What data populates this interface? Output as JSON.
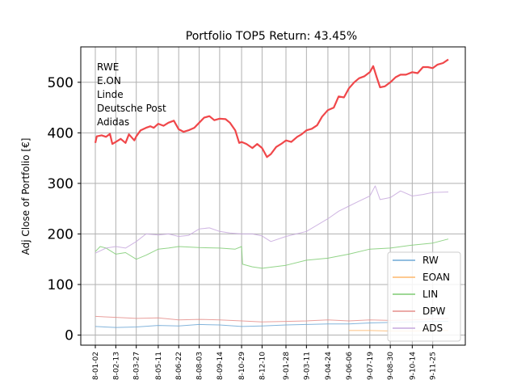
{
  "chart_data": {
    "type": "line",
    "title": "Portfolio TOP5 Return: 43.45%",
    "xlabel": "",
    "ylabel": "Adj Close of Portfolio [€]",
    "ylim": [
      -20,
      570
    ],
    "yticks": [
      0,
      100,
      200,
      300,
      400,
      500
    ],
    "grid": true,
    "legend_position": "lower-right",
    "xticks": [
      "2018-01-02",
      "2018-02-13",
      "2018-03-27",
      "2018-05-11",
      "2018-06-22",
      "2018-08-03",
      "2018-09-14",
      "2018-10-29",
      "2018-12-10",
      "2019-01-28",
      "2019-03-11",
      "2019-04-24",
      "2019-06-06",
      "2019-07-19",
      "2019-08-30",
      "2019-10-14",
      "2019-11-25"
    ],
    "xticks_display": [
      "8-01-02",
      "8-02-13",
      "8-03-27",
      "8-05-11",
      "8-06-22",
      "8-08-03",
      "8-09-14",
      "8-10-29",
      "8-12-10",
      "9-01-28",
      "9-03-11",
      "9-04-24",
      "9-06-06",
      "9-07-19",
      "9-08-30",
      "9-10-14",
      "9-11-25"
    ],
    "annotation_lines": [
      "RWE",
      "E.ON",
      "Linde",
      "Deutsche Post",
      "Adidas"
    ],
    "portfolio": {
      "name": "",
      "color": "#f0474a",
      "points": [
        [
          "2018-01-02",
          380
        ],
        [
          "2018-01-05",
          393
        ],
        [
          "2018-01-15",
          395
        ],
        [
          "2018-01-24",
          392
        ],
        [
          "2018-02-01",
          398
        ],
        [
          "2018-02-06",
          378
        ],
        [
          "2018-02-13",
          382
        ],
        [
          "2018-02-23",
          388
        ],
        [
          "2018-03-05",
          380
        ],
        [
          "2018-03-12",
          397
        ],
        [
          "2018-03-23",
          385
        ],
        [
          "2018-03-27",
          393
        ],
        [
          "2018-04-05",
          405
        ],
        [
          "2018-04-16",
          410
        ],
        [
          "2018-04-25",
          413
        ],
        [
          "2018-05-02",
          410
        ],
        [
          "2018-05-11",
          418
        ],
        [
          "2018-05-22",
          414
        ],
        [
          "2018-06-01",
          420
        ],
        [
          "2018-06-12",
          424
        ],
        [
          "2018-06-22",
          407
        ],
        [
          "2018-07-02",
          402
        ],
        [
          "2018-07-12",
          405
        ],
        [
          "2018-07-24",
          410
        ],
        [
          "2018-08-03",
          420
        ],
        [
          "2018-08-13",
          430
        ],
        [
          "2018-08-24",
          433
        ],
        [
          "2018-09-03",
          425
        ],
        [
          "2018-09-14",
          428
        ],
        [
          "2018-09-26",
          427
        ],
        [
          "2018-10-05",
          420
        ],
        [
          "2018-10-16",
          405
        ],
        [
          "2018-10-24",
          380
        ],
        [
          "2018-10-29",
          382
        ],
        [
          "2018-11-08",
          378
        ],
        [
          "2018-11-20",
          370
        ],
        [
          "2018-11-30",
          378
        ],
        [
          "2018-12-10",
          370
        ],
        [
          "2018-12-20",
          352
        ],
        [
          "2018-12-28",
          358
        ],
        [
          "2019-01-08",
          372
        ],
        [
          "2019-01-18",
          378
        ],
        [
          "2019-01-28",
          385
        ],
        [
          "2019-02-08",
          382
        ],
        [
          "2019-02-20",
          392
        ],
        [
          "2019-03-01",
          397
        ],
        [
          "2019-03-11",
          405
        ],
        [
          "2019-03-22",
          408
        ],
        [
          "2019-04-02",
          415
        ],
        [
          "2019-04-12",
          432
        ],
        [
          "2019-04-24",
          445
        ],
        [
          "2019-05-06",
          450
        ],
        [
          "2019-05-16",
          472
        ],
        [
          "2019-05-27",
          470
        ],
        [
          "2019-06-06",
          488
        ],
        [
          "2019-06-17",
          500
        ],
        [
          "2019-06-27",
          508
        ],
        [
          "2019-07-08",
          512
        ],
        [
          "2019-07-19",
          520
        ],
        [
          "2019-07-26",
          532
        ],
        [
          "2019-08-02",
          510
        ],
        [
          "2019-08-09",
          490
        ],
        [
          "2019-08-19",
          492
        ],
        [
          "2019-08-30",
          500
        ],
        [
          "2019-09-10",
          510
        ],
        [
          "2019-09-20",
          515
        ],
        [
          "2019-10-01",
          515
        ],
        [
          "2019-10-14",
          520
        ],
        [
          "2019-10-25",
          518
        ],
        [
          "2019-11-05",
          530
        ],
        [
          "2019-11-15",
          530
        ],
        [
          "2019-11-25",
          528
        ],
        [
          "2019-12-05",
          535
        ],
        [
          "2019-12-16",
          538
        ],
        [
          "2019-12-27",
          545
        ]
      ]
    },
    "series": [
      {
        "name": "RW",
        "color": "#6fa8d6",
        "points": [
          [
            "2018-01-02",
            17
          ],
          [
            "2018-02-13",
            15
          ],
          [
            "2018-03-27",
            16
          ],
          [
            "2018-05-11",
            19
          ],
          [
            "2018-06-22",
            18
          ],
          [
            "2018-08-03",
            21
          ],
          [
            "2018-09-14",
            20
          ],
          [
            "2018-10-29",
            17
          ],
          [
            "2018-12-10",
            18
          ],
          [
            "2019-01-28",
            20
          ],
          [
            "2019-03-11",
            21
          ],
          [
            "2019-04-24",
            22
          ],
          [
            "2019-06-06",
            22
          ],
          [
            "2019-07-19",
            24
          ],
          [
            "2019-08-30",
            25
          ],
          [
            "2019-10-14",
            26
          ],
          [
            "2019-11-25",
            27
          ],
          [
            "2019-12-27",
            27
          ]
        ]
      },
      {
        "name": "EOAN",
        "color": "#fdb76c",
        "points": [
          [
            "2019-06-06",
            9
          ],
          [
            "2019-07-19",
            9
          ],
          [
            "2019-08-30",
            8
          ],
          [
            "2019-10-14",
            8
          ],
          [
            "2019-11-25",
            9
          ],
          [
            "2019-12-27",
            9
          ]
        ]
      },
      {
        "name": "LIN",
        "color": "#7fcc73",
        "points": [
          [
            "2018-01-02",
            165
          ],
          [
            "2018-01-12",
            175
          ],
          [
            "2018-01-24",
            172
          ],
          [
            "2018-02-13",
            160
          ],
          [
            "2018-03-05",
            163
          ],
          [
            "2018-03-27",
            150
          ],
          [
            "2018-04-16",
            158
          ],
          [
            "2018-05-11",
            170
          ],
          [
            "2018-06-01",
            172
          ],
          [
            "2018-06-22",
            175
          ],
          [
            "2018-08-03",
            173
          ],
          [
            "2018-09-14",
            172
          ],
          [
            "2018-10-16",
            170
          ],
          [
            "2018-10-29",
            175
          ],
          [
            "2018-10-31",
            140
          ],
          [
            "2018-11-20",
            135
          ],
          [
            "2018-12-10",
            132
          ],
          [
            "2019-01-28",
            138
          ],
          [
            "2019-03-11",
            148
          ],
          [
            "2019-04-24",
            152
          ],
          [
            "2019-06-06",
            160
          ],
          [
            "2019-07-19",
            170
          ],
          [
            "2019-08-30",
            172
          ],
          [
            "2019-10-14",
            178
          ],
          [
            "2019-11-25",
            182
          ],
          [
            "2019-12-27",
            190
          ]
        ]
      },
      {
        "name": "DPW",
        "color": "#e58f8c",
        "points": [
          [
            "2018-01-02",
            37
          ],
          [
            "2018-02-13",
            35
          ],
          [
            "2018-03-27",
            33
          ],
          [
            "2018-05-11",
            34
          ],
          [
            "2018-06-22",
            30
          ],
          [
            "2018-08-03",
            31
          ],
          [
            "2018-09-14",
            30
          ],
          [
            "2018-10-29",
            28
          ],
          [
            "2018-12-10",
            26
          ],
          [
            "2019-01-28",
            27
          ],
          [
            "2019-03-11",
            28
          ],
          [
            "2019-04-24",
            30
          ],
          [
            "2019-06-06",
            28
          ],
          [
            "2019-07-19",
            30
          ],
          [
            "2019-08-30",
            29
          ],
          [
            "2019-10-14",
            30
          ],
          [
            "2019-11-25",
            32
          ],
          [
            "2019-12-27",
            33
          ]
        ]
      },
      {
        "name": "ADS",
        "color": "#c7a8dd",
        "points": [
          [
            "2018-01-02",
            162
          ],
          [
            "2018-01-24",
            172
          ],
          [
            "2018-02-13",
            175
          ],
          [
            "2018-03-05",
            172
          ],
          [
            "2018-03-27",
            185
          ],
          [
            "2018-04-16",
            200
          ],
          [
            "2018-05-11",
            198
          ],
          [
            "2018-06-01",
            200
          ],
          [
            "2018-06-22",
            195
          ],
          [
            "2018-07-12",
            197
          ],
          [
            "2018-08-03",
            210
          ],
          [
            "2018-08-24",
            212
          ],
          [
            "2018-09-14",
            205
          ],
          [
            "2018-10-05",
            202
          ],
          [
            "2018-10-29",
            200
          ],
          [
            "2018-11-20",
            200
          ],
          [
            "2018-12-10",
            196
          ],
          [
            "2018-12-28",
            185
          ],
          [
            "2019-01-28",
            195
          ],
          [
            "2019-03-11",
            205
          ],
          [
            "2019-04-24",
            230
          ],
          [
            "2019-05-16",
            245
          ],
          [
            "2019-06-06",
            255
          ],
          [
            "2019-06-27",
            265
          ],
          [
            "2019-07-19",
            275
          ],
          [
            "2019-07-30",
            295
          ],
          [
            "2019-08-09",
            268
          ],
          [
            "2019-08-30",
            272
          ],
          [
            "2019-09-20",
            285
          ],
          [
            "2019-10-14",
            275
          ],
          [
            "2019-11-05",
            278
          ],
          [
            "2019-11-25",
            282
          ],
          [
            "2019-12-27",
            283
          ]
        ]
      }
    ]
  }
}
